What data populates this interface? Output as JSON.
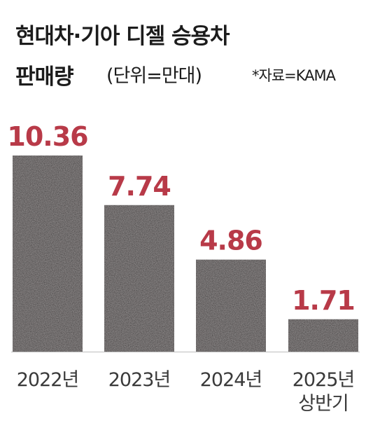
{
  "title": {
    "line1": "현대차·기아 디젤 승용차",
    "line2": "판매량",
    "unit": "(단위=만대)",
    "source": "*자료=KAMA"
  },
  "colors": {
    "bar": "#2b2626",
    "value_label": "#b83a48",
    "tick_label": "#3a3a3a",
    "baseline": "#bdbdbd"
  },
  "chart_data": {
    "type": "bar",
    "title": "현대차·기아 디젤 승용차 판매량",
    "unit": "(단위=만대)",
    "source": "*자료=KAMA",
    "categories": [
      "2022년",
      "2023년",
      "2024년",
      "2025년 상반기"
    ],
    "values": [
      10.36,
      7.74,
      4.86,
      1.71
    ],
    "value_labels": [
      "10.36",
      "7.74",
      "4.86",
      "1.71"
    ],
    "ylim": [
      0,
      11.0
    ],
    "grid": false
  }
}
